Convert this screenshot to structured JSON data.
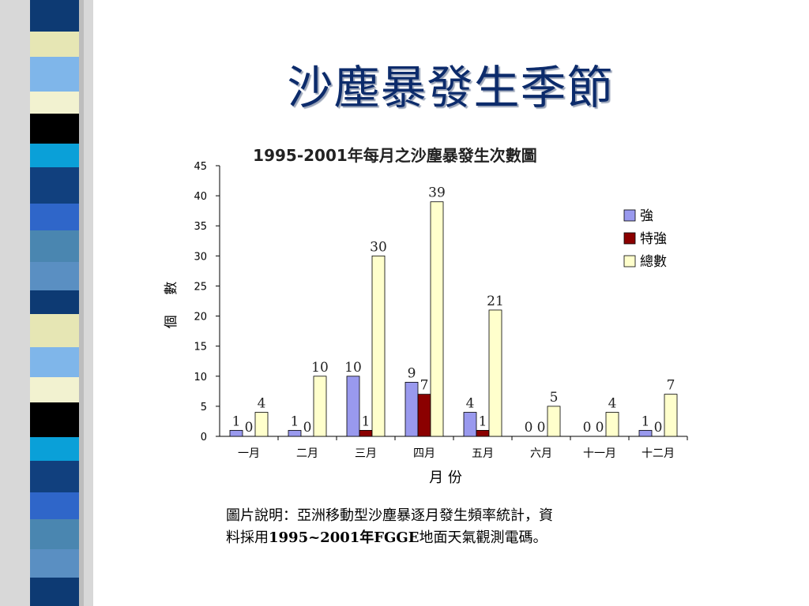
{
  "slide": {
    "title": "沙塵暴發生季節",
    "caption_line1": "圖片說明：亞洲移動型沙塵暴逐月發生頻率統計，資",
    "caption_line2_prefix": "料採用",
    "caption_line2_bold": "1995~2001年FGGE",
    "caption_line2_suffix": "地面天氣觀測電碼。",
    "accent_color": "#0c2b6b"
  },
  "chart_data": {
    "type": "bar",
    "title": "1995-2001年每月之沙塵暴發生次數圖",
    "xlabel": "月  份",
    "ylabel": "個 數",
    "ylim": [
      0,
      45
    ],
    "yticks": [
      0,
      5,
      10,
      15,
      20,
      25,
      30,
      35,
      40,
      45
    ],
    "categories": [
      "一月",
      "二月",
      "三月",
      "四月",
      "五月",
      "六月",
      "十一月",
      "十二月"
    ],
    "series": [
      {
        "name": "強",
        "color": "#9999ee",
        "values": [
          1,
          1,
          10,
          9,
          4,
          0,
          0,
          1
        ]
      },
      {
        "name": "特強",
        "color": "#8b0000",
        "values": [
          0,
          0,
          1,
          7,
          1,
          0,
          0,
          0
        ]
      },
      {
        "name": "總數",
        "color": "#ffffcc",
        "values": [
          4,
          10,
          30,
          39,
          21,
          5,
          4,
          7
        ]
      }
    ],
    "legend": "right",
    "grid": false
  }
}
